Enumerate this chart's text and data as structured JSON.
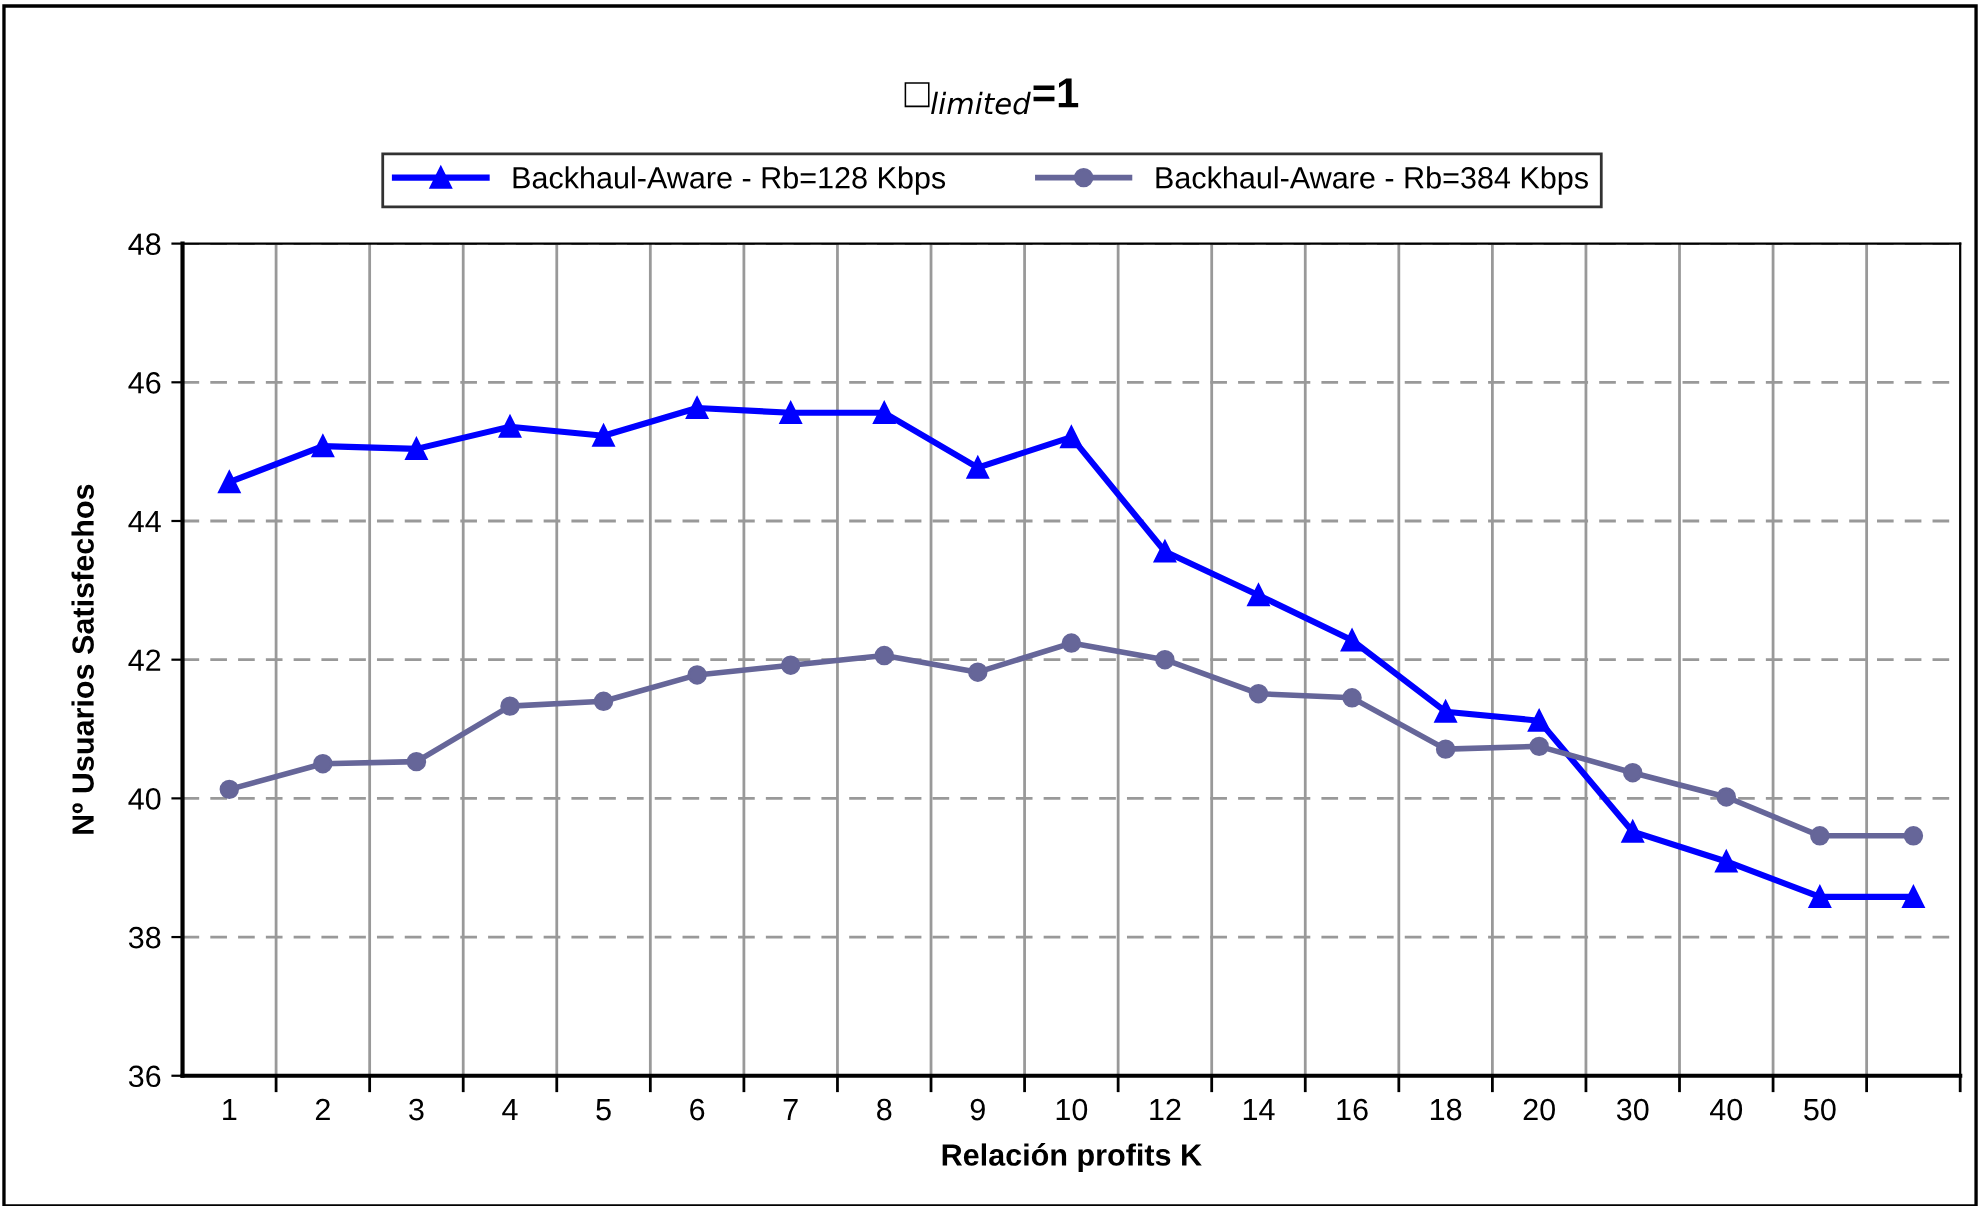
{
  "chart_data": {
    "type": "line",
    "title": "□$_{limited}$=1",
    "xlabel": "Relación profits K",
    "ylabel": "Nº Usuarios Satisfechos",
    "categories": [
      "1",
      "2",
      "3",
      "4",
      "5",
      "6",
      "7",
      "8",
      "9",
      "10",
      "12",
      "14",
      "16",
      "18",
      "20",
      "30",
      "40",
      "50",
      null
    ],
    "series": [
      {
        "name": "Backhaul-Aware - Rb=128 Kbps",
        "color": "#0000ff",
        "marker": "triangle",
        "values": [
          44.56,
          45.08,
          45.04,
          45.36,
          45.23,
          45.63,
          45.56,
          45.56,
          44.77,
          45.21,
          43.56,
          42.93,
          42.28,
          41.25,
          41.12,
          39.52,
          39.09,
          38.58,
          38.58
        ]
      },
      {
        "name": "Backhaul-Aware - Rb=384 Kbps",
        "color": "#666699",
        "marker": "circle",
        "values": [
          40.13,
          40.5,
          40.53,
          41.33,
          41.4,
          41.78,
          41.92,
          42.06,
          41.82,
          42.24,
          42.0,
          41.51,
          41.45,
          40.71,
          40.75,
          40.37,
          40.02,
          39.46,
          39.46
        ]
      }
    ],
    "ylim": [
      36,
      48
    ],
    "yticks": [
      36,
      38,
      40,
      42,
      44,
      46,
      48
    ],
    "grid": true,
    "legend": "top",
    "line_style": "solid"
  }
}
